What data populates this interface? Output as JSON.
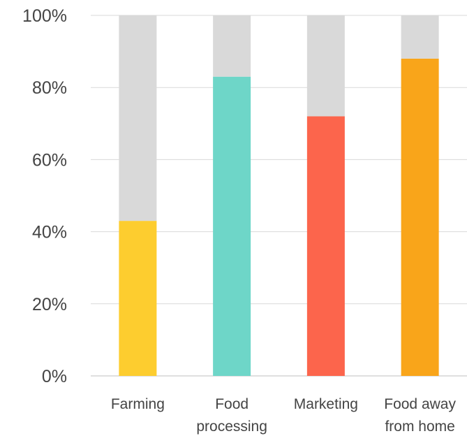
{
  "chart_data": {
    "type": "bar",
    "stacked_percent": true,
    "categories": [
      "Farming",
      "Food processing",
      "Marketing",
      "Food away from home"
    ],
    "category_label_lines": [
      [
        "Farming"
      ],
      [
        "Food",
        "processing"
      ],
      [
        "Marketing"
      ],
      [
        "Food away",
        "from home"
      ]
    ],
    "values": [
      43,
      83,
      72,
      88
    ],
    "remainder": [
      57,
      17,
      28,
      12
    ],
    "bar_colors": [
      "#fdcd2f",
      "#6ed6c8",
      "#fc654c",
      "#f9a51a"
    ],
    "remainder_color": "#d9d9d9",
    "ylim": [
      0,
      100
    ],
    "yticks": [
      "0%",
      "20%",
      "40%",
      "60%",
      "80%",
      "100%"
    ],
    "grid": true,
    "title": "",
    "xlabel": "",
    "ylabel": ""
  }
}
